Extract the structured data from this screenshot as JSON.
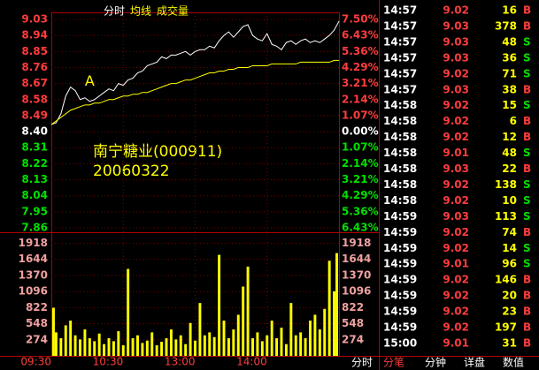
{
  "chart_data": [
    {
      "type": "line",
      "title": "南宁糖业(000911)",
      "subtitle": "20060322",
      "annotations": [
        {
          "text": "A",
          "x": 28,
          "y": 8.68
        }
      ],
      "x": [
        0,
        4,
        8,
        12,
        16,
        20,
        24,
        28,
        32,
        36,
        40,
        44,
        48,
        52,
        56,
        60,
        64,
        68,
        72,
        76,
        80,
        84,
        88,
        92,
        96,
        100,
        104,
        108,
        112,
        116,
        120,
        124,
        128,
        132,
        136,
        140,
        144,
        148,
        152,
        156,
        160,
        164,
        168,
        172,
        176,
        180,
        184,
        188,
        192,
        196,
        200,
        204,
        208,
        212,
        216,
        220,
        224,
        228,
        232,
        236,
        240
      ],
      "xlim": [
        0,
        240
      ],
      "xticks": [
        {
          "value": 0,
          "label": "09:30"
        },
        {
          "value": 60,
          "label": "10:30"
        },
        {
          "value": 120,
          "label": "13:00"
        },
        {
          "value": 180,
          "label": "14:00"
        }
      ],
      "ylim": [
        7.86,
        9.03
      ],
      "yticks": [
        {
          "value": 9.03,
          "label": "9.03"
        },
        {
          "value": 8.94,
          "label": "8.94"
        },
        {
          "value": 8.85,
          "label": "8.85"
        },
        {
          "value": 8.76,
          "label": "8.76"
        },
        {
          "value": 8.67,
          "label": "8.67"
        },
        {
          "value": 8.58,
          "label": "8.58"
        },
        {
          "value": 8.49,
          "label": "8.49"
        },
        {
          "value": 8.4,
          "label": "8.40"
        },
        {
          "value": 8.31,
          "label": "8.31"
        },
        {
          "value": 8.22,
          "label": "8.22"
        },
        {
          "value": 8.13,
          "label": "8.13"
        },
        {
          "value": 8.04,
          "label": "8.04"
        },
        {
          "value": 7.95,
          "label": "7.95"
        },
        {
          "value": 7.86,
          "label": "7.86"
        }
      ],
      "y2lim": [
        -6.43,
        7.5
      ],
      "y2ticks": [
        {
          "value": 7.5,
          "label": "7.50%"
        },
        {
          "value": 6.43,
          "label": "6.43%"
        },
        {
          "value": 5.36,
          "label": "5.36%"
        },
        {
          "value": 4.29,
          "label": "4.29%"
        },
        {
          "value": 3.21,
          "label": "3.21%"
        },
        {
          "value": 2.14,
          "label": "2.14%"
        },
        {
          "value": 1.07,
          "label": "1.07%"
        },
        {
          "value": 0,
          "label": "0.00%"
        },
        {
          "value": -1.07,
          "label": "1.07%"
        },
        {
          "value": -2.14,
          "label": "2.14%"
        },
        {
          "value": -3.21,
          "label": "3.21%"
        },
        {
          "value": -4.29,
          "label": "4.29%"
        },
        {
          "value": -5.36,
          "label": "5.36%"
        },
        {
          "value": -6.43,
          "label": "6.43%"
        }
      ],
      "up_color": "#ff3c3c",
      "down_color": "#00e000",
      "flat_color": "#ffffff",
      "grid": true,
      "grid_color": "#7a0000",
      "series": [
        {
          "name": "分时",
          "color": "#ffffff",
          "values": [
            8.44,
            8.45,
            8.5,
            8.6,
            8.65,
            8.63,
            8.58,
            8.59,
            8.57,
            8.58,
            8.6,
            8.62,
            8.64,
            8.63,
            8.67,
            8.66,
            8.69,
            8.7,
            8.73,
            8.74,
            8.77,
            8.78,
            8.79,
            8.82,
            8.81,
            8.83,
            8.83,
            8.84,
            8.85,
            8.83,
            8.85,
            8.86,
            8.86,
            8.88,
            8.87,
            8.91,
            8.94,
            8.96,
            8.93,
            8.96,
            8.99,
            9.0,
            8.94,
            8.92,
            8.91,
            8.95,
            8.89,
            8.88,
            8.86,
            8.9,
            8.91,
            8.89,
            8.91,
            8.92,
            8.9,
            8.91,
            8.9,
            8.92,
            8.94,
            8.97,
            9.02
          ]
        },
        {
          "name": "均线",
          "color": "#ffff00",
          "values": [
            8.44,
            8.46,
            8.48,
            8.5,
            8.52,
            8.53,
            8.54,
            8.55,
            8.55,
            8.56,
            8.56,
            8.57,
            8.58,
            8.58,
            8.59,
            8.6,
            8.6,
            8.61,
            8.61,
            8.62,
            8.62,
            8.63,
            8.64,
            8.65,
            8.66,
            8.67,
            8.67,
            8.68,
            8.69,
            8.69,
            8.7,
            8.71,
            8.72,
            8.73,
            8.73,
            8.74,
            8.74,
            8.75,
            8.75,
            8.76,
            8.76,
            8.76,
            8.77,
            8.77,
            8.77,
            8.77,
            8.78,
            8.78,
            8.78,
            8.78,
            8.78,
            8.78,
            8.79,
            8.79,
            8.79,
            8.79,
            8.79,
            8.79,
            8.79,
            8.8,
            8.8
          ]
        }
      ]
    },
    {
      "type": "bar",
      "ylim": [
        0,
        2060
      ],
      "yticks": [
        1918,
        1644,
        1370,
        1096,
        822,
        548,
        274
      ],
      "tick_color": "#f0a0a0",
      "series": [
        {
          "name": "成交量",
          "color": "#ffff00",
          "values": [
            820,
            400,
            300,
            520,
            600,
            350,
            280,
            450,
            300,
            250,
            380,
            200,
            300,
            250,
            420,
            180,
            1480,
            300,
            350,
            220,
            260,
            400,
            180,
            240,
            300,
            450,
            280,
            350,
            200,
            560,
            260,
            900,
            350,
            400,
            320,
            1720,
            600,
            300,
            450,
            700,
            1180,
            1520,
            300,
            400,
            250,
            350,
            600,
            300,
            480,
            200,
            900,
            350,
            400,
            300,
            600,
            700,
            450,
            800,
            1620,
            1100,
            1750
          ]
        }
      ]
    }
  ],
  "trades": {
    "time_color": "#ffffff",
    "price_color": "#ff3c3c",
    "volume_color": "#ffff00",
    "side_colors": {
      "B": "#ff3c3c",
      "S": "#00e000"
    },
    "rows": [
      [
        "14:57",
        "9.02",
        "16",
        "B"
      ],
      [
        "14:57",
        "9.03",
        "378",
        "B"
      ],
      [
        "14:57",
        "9.03",
        "48",
        "S"
      ],
      [
        "14:57",
        "9.03",
        "36",
        "S"
      ],
      [
        "14:57",
        "9.02",
        "71",
        "S"
      ],
      [
        "14:57",
        "9.03",
        "38",
        "B"
      ],
      [
        "14:58",
        "9.02",
        "15",
        "S"
      ],
      [
        "14:58",
        "9.02",
        "6",
        "B"
      ],
      [
        "14:58",
        "9.02",
        "12",
        "B"
      ],
      [
        "14:58",
        "9.01",
        "48",
        "S"
      ],
      [
        "14:58",
        "9.03",
        "22",
        "B"
      ],
      [
        "14:58",
        "9.02",
        "138",
        "S"
      ],
      [
        "14:58",
        "9.02",
        "10",
        "S"
      ],
      [
        "14:59",
        "9.03",
        "113",
        "S"
      ],
      [
        "14:59",
        "9.02",
        "74",
        "B"
      ],
      [
        "14:59",
        "9.02",
        "14",
        "S"
      ],
      [
        "14:59",
        "9.01",
        "96",
        "S"
      ],
      [
        "14:59",
        "9.02",
        "146",
        "B"
      ],
      [
        "14:59",
        "9.02",
        "20",
        "B"
      ],
      [
        "14:59",
        "9.02",
        "23",
        "B"
      ],
      [
        "14:59",
        "9.02",
        "197",
        "B"
      ],
      [
        "15:00",
        "9.01",
        "31",
        "B"
      ]
    ]
  },
  "tabs": {
    "items": [
      "分时",
      "分笔",
      "分钟",
      "详盘",
      "数值"
    ],
    "active": 1,
    "active_color": "#ff3c3c",
    "color": "#ffffff"
  }
}
